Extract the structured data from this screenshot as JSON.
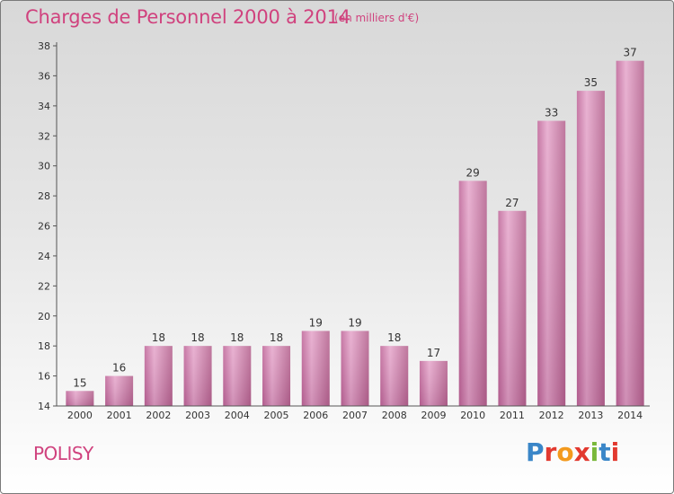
{
  "title": "Charges de Personnel 2000 à 2014",
  "subtitle": "(en milliers d'€)",
  "place": "POLISY",
  "logo": {
    "letters": [
      "P",
      "r",
      "o",
      "x",
      "i",
      "t",
      "i"
    ],
    "colors": [
      "#3a86c8",
      "#e2392f",
      "#f39a1d",
      "#e2392f",
      "#79b83a",
      "#3a86c8",
      "#e2392f"
    ]
  },
  "colors": {
    "bar": "#cc7aa8",
    "bar_light": "#e6a8cc",
    "accent": "#d0427e"
  },
  "chart_data": {
    "type": "bar",
    "categories": [
      "2000",
      "2001",
      "2002",
      "2003",
      "2004",
      "2005",
      "2006",
      "2007",
      "2008",
      "2009",
      "2010",
      "2011",
      "2012",
      "2013",
      "2014"
    ],
    "values": [
      15,
      16,
      18,
      18,
      18,
      18,
      19,
      19,
      18,
      17,
      29,
      27,
      33,
      35,
      37
    ],
    "ylim": [
      14,
      38
    ],
    "yticks": [
      14,
      16,
      18,
      20,
      22,
      24,
      26,
      28,
      30,
      32,
      34,
      36,
      38
    ],
    "grid": false,
    "legend": "none"
  }
}
